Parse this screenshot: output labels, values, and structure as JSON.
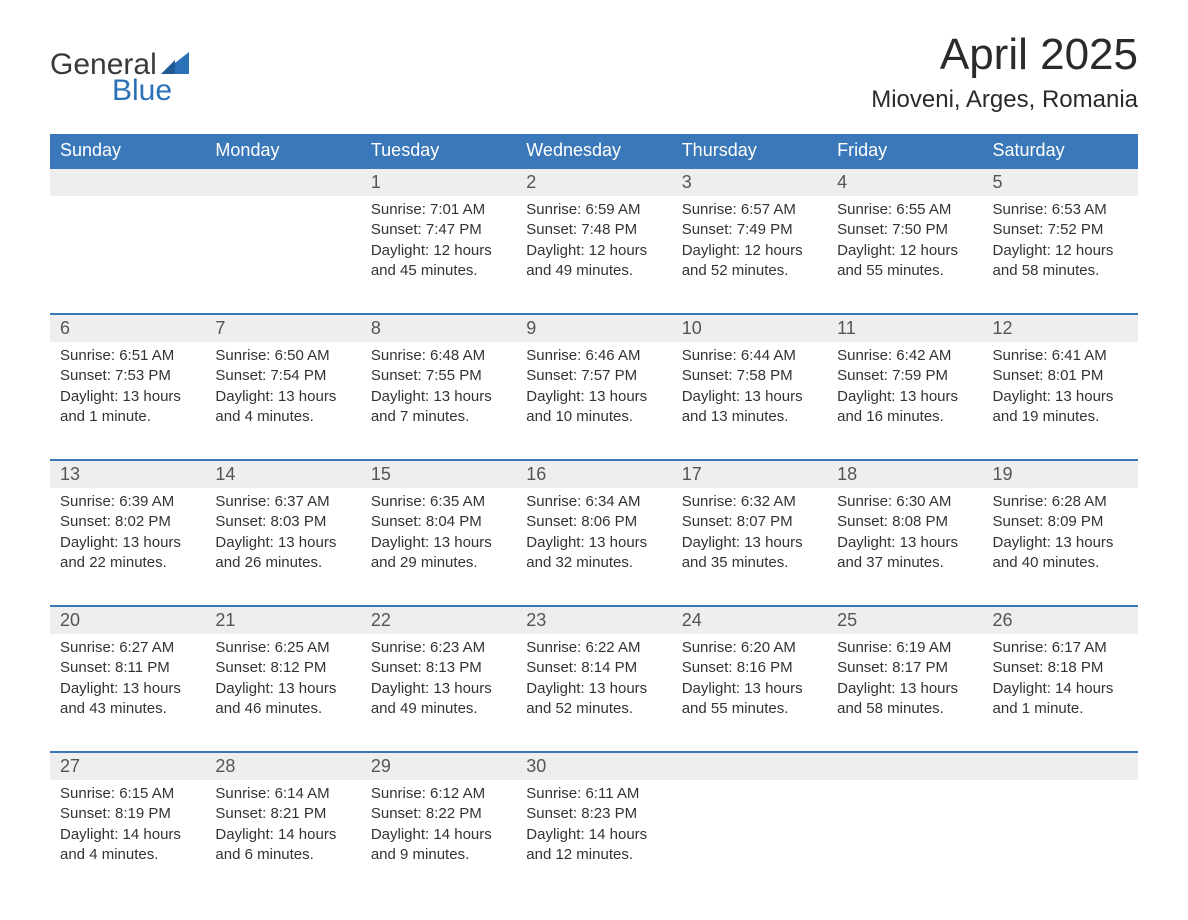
{
  "brand": {
    "word1": "General",
    "word2": "Blue",
    "text_color": "#3a3a3a",
    "accent_color": "#2b71b8",
    "sail_color": "#2b71b8"
  },
  "title": {
    "month_year": "April 2025",
    "location": "Mioveni, Arges, Romania",
    "title_fontsize": 44,
    "location_fontsize": 24,
    "title_color": "#2a2a2a"
  },
  "calendar": {
    "header_bg": "#3a78b9",
    "header_text": "#ffffff",
    "daynum_bg": "#eeeeee",
    "daynum_border": "#3a78b9",
    "cell_text": "#333333",
    "days_of_week": [
      "Sunday",
      "Monday",
      "Tuesday",
      "Wednesday",
      "Thursday",
      "Friday",
      "Saturday"
    ],
    "weeks": [
      [
        {
          "num": "",
          "sunrise": "",
          "sunset": "",
          "daylight": ""
        },
        {
          "num": "",
          "sunrise": "",
          "sunset": "",
          "daylight": ""
        },
        {
          "num": "1",
          "sunrise": "Sunrise: 7:01 AM",
          "sunset": "Sunset: 7:47 PM",
          "daylight": "Daylight: 12 hours and 45 minutes."
        },
        {
          "num": "2",
          "sunrise": "Sunrise: 6:59 AM",
          "sunset": "Sunset: 7:48 PM",
          "daylight": "Daylight: 12 hours and 49 minutes."
        },
        {
          "num": "3",
          "sunrise": "Sunrise: 6:57 AM",
          "sunset": "Sunset: 7:49 PM",
          "daylight": "Daylight: 12 hours and 52 minutes."
        },
        {
          "num": "4",
          "sunrise": "Sunrise: 6:55 AM",
          "sunset": "Sunset: 7:50 PM",
          "daylight": "Daylight: 12 hours and 55 minutes."
        },
        {
          "num": "5",
          "sunrise": "Sunrise: 6:53 AM",
          "sunset": "Sunset: 7:52 PM",
          "daylight": "Daylight: 12 hours and 58 minutes."
        }
      ],
      [
        {
          "num": "6",
          "sunrise": "Sunrise: 6:51 AM",
          "sunset": "Sunset: 7:53 PM",
          "daylight": "Daylight: 13 hours and 1 minute."
        },
        {
          "num": "7",
          "sunrise": "Sunrise: 6:50 AM",
          "sunset": "Sunset: 7:54 PM",
          "daylight": "Daylight: 13 hours and 4 minutes."
        },
        {
          "num": "8",
          "sunrise": "Sunrise: 6:48 AM",
          "sunset": "Sunset: 7:55 PM",
          "daylight": "Daylight: 13 hours and 7 minutes."
        },
        {
          "num": "9",
          "sunrise": "Sunrise: 6:46 AM",
          "sunset": "Sunset: 7:57 PM",
          "daylight": "Daylight: 13 hours and 10 minutes."
        },
        {
          "num": "10",
          "sunrise": "Sunrise: 6:44 AM",
          "sunset": "Sunset: 7:58 PM",
          "daylight": "Daylight: 13 hours and 13 minutes."
        },
        {
          "num": "11",
          "sunrise": "Sunrise: 6:42 AM",
          "sunset": "Sunset: 7:59 PM",
          "daylight": "Daylight: 13 hours and 16 minutes."
        },
        {
          "num": "12",
          "sunrise": "Sunrise: 6:41 AM",
          "sunset": "Sunset: 8:01 PM",
          "daylight": "Daylight: 13 hours and 19 minutes."
        }
      ],
      [
        {
          "num": "13",
          "sunrise": "Sunrise: 6:39 AM",
          "sunset": "Sunset: 8:02 PM",
          "daylight": "Daylight: 13 hours and 22 minutes."
        },
        {
          "num": "14",
          "sunrise": "Sunrise: 6:37 AM",
          "sunset": "Sunset: 8:03 PM",
          "daylight": "Daylight: 13 hours and 26 minutes."
        },
        {
          "num": "15",
          "sunrise": "Sunrise: 6:35 AM",
          "sunset": "Sunset: 8:04 PM",
          "daylight": "Daylight: 13 hours and 29 minutes."
        },
        {
          "num": "16",
          "sunrise": "Sunrise: 6:34 AM",
          "sunset": "Sunset: 8:06 PM",
          "daylight": "Daylight: 13 hours and 32 minutes."
        },
        {
          "num": "17",
          "sunrise": "Sunrise: 6:32 AM",
          "sunset": "Sunset: 8:07 PM",
          "daylight": "Daylight: 13 hours and 35 minutes."
        },
        {
          "num": "18",
          "sunrise": "Sunrise: 6:30 AM",
          "sunset": "Sunset: 8:08 PM",
          "daylight": "Daylight: 13 hours and 37 minutes."
        },
        {
          "num": "19",
          "sunrise": "Sunrise: 6:28 AM",
          "sunset": "Sunset: 8:09 PM",
          "daylight": "Daylight: 13 hours and 40 minutes."
        }
      ],
      [
        {
          "num": "20",
          "sunrise": "Sunrise: 6:27 AM",
          "sunset": "Sunset: 8:11 PM",
          "daylight": "Daylight: 13 hours and 43 minutes."
        },
        {
          "num": "21",
          "sunrise": "Sunrise: 6:25 AM",
          "sunset": "Sunset: 8:12 PM",
          "daylight": "Daylight: 13 hours and 46 minutes."
        },
        {
          "num": "22",
          "sunrise": "Sunrise: 6:23 AM",
          "sunset": "Sunset: 8:13 PM",
          "daylight": "Daylight: 13 hours and 49 minutes."
        },
        {
          "num": "23",
          "sunrise": "Sunrise: 6:22 AM",
          "sunset": "Sunset: 8:14 PM",
          "daylight": "Daylight: 13 hours and 52 minutes."
        },
        {
          "num": "24",
          "sunrise": "Sunrise: 6:20 AM",
          "sunset": "Sunset: 8:16 PM",
          "daylight": "Daylight: 13 hours and 55 minutes."
        },
        {
          "num": "25",
          "sunrise": "Sunrise: 6:19 AM",
          "sunset": "Sunset: 8:17 PM",
          "daylight": "Daylight: 13 hours and 58 minutes."
        },
        {
          "num": "26",
          "sunrise": "Sunrise: 6:17 AM",
          "sunset": "Sunset: 8:18 PM",
          "daylight": "Daylight: 14 hours and 1 minute."
        }
      ],
      [
        {
          "num": "27",
          "sunrise": "Sunrise: 6:15 AM",
          "sunset": "Sunset: 8:19 PM",
          "daylight": "Daylight: 14 hours and 4 minutes."
        },
        {
          "num": "28",
          "sunrise": "Sunrise: 6:14 AM",
          "sunset": "Sunset: 8:21 PM",
          "daylight": "Daylight: 14 hours and 6 minutes."
        },
        {
          "num": "29",
          "sunrise": "Sunrise: 6:12 AM",
          "sunset": "Sunset: 8:22 PM",
          "daylight": "Daylight: 14 hours and 9 minutes."
        },
        {
          "num": "30",
          "sunrise": "Sunrise: 6:11 AM",
          "sunset": "Sunset: 8:23 PM",
          "daylight": "Daylight: 14 hours and 12 minutes."
        },
        {
          "num": "",
          "sunrise": "",
          "sunset": "",
          "daylight": ""
        },
        {
          "num": "",
          "sunrise": "",
          "sunset": "",
          "daylight": ""
        },
        {
          "num": "",
          "sunrise": "",
          "sunset": "",
          "daylight": ""
        }
      ]
    ]
  }
}
